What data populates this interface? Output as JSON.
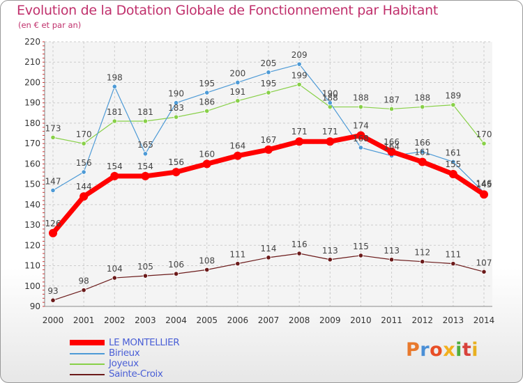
{
  "header": {
    "title": "Evolution de la Dotation Globale de Fonctionnement par Habitant",
    "subtitle": "(en € et par an)"
  },
  "brand": {
    "text": "Proxiti",
    "colors": [
      "#e8792d",
      "#4a8fd6",
      "#e84e26",
      "#f2b01e",
      "#4fad3d",
      "#d8423b",
      "#e8b020"
    ]
  },
  "chart_data": {
    "type": "line",
    "title": "Evolution de la Dotation Globale de Fonctionnement par Habitant",
    "subtitle": "(en € et par an)",
    "xlabel": "",
    "ylabel": "",
    "x": [
      "2000",
      "2001",
      "2002",
      "2003",
      "2004",
      "2005",
      "2006",
      "2007",
      "2008",
      "2009",
      "2010",
      "2011",
      "2012",
      "2013",
      "2014"
    ],
    "ylim": [
      90,
      220
    ],
    "yticks": [
      "90",
      "100",
      "110",
      "120",
      "130",
      "140",
      "150",
      "160",
      "170",
      "180",
      "190",
      "200",
      "210",
      "220"
    ],
    "grid": true,
    "legend_position": "bottom-left",
    "series": [
      {
        "name": "LE MONTELLIER",
        "color": "#ff0000",
        "values": [
          126,
          144,
          154,
          154,
          156,
          160,
          164,
          167,
          171,
          171,
          174,
          166,
          161,
          155,
          145
        ],
        "labels": [
          "126",
          "144",
          "154",
          "154",
          "156",
          "160",
          "164",
          "167",
          "171",
          "171",
          "174",
          "166",
          "161",
          "155",
          "145"
        ]
      },
      {
        "name": "Birieux",
        "color": "#4d9ad6",
        "values": [
          147,
          156,
          198,
          165,
          190,
          195,
          200,
          205,
          209,
          190,
          168,
          164,
          166,
          161,
          146
        ],
        "labels": [
          "147",
          "156",
          "198",
          "165",
          "190",
          "195",
          "200",
          "205",
          "209",
          "190",
          "168",
          "164",
          "166",
          "161",
          "146"
        ]
      },
      {
        "name": "Joyeux",
        "color": "#88d048",
        "values": [
          173,
          170,
          181,
          181,
          183,
          186,
          191,
          195,
          199,
          188,
          188,
          187,
          188,
          189,
          170
        ],
        "labels": [
          "173",
          "170",
          "181",
          "181",
          "183",
          "186",
          "191",
          "195",
          "199",
          "188",
          "188",
          "187",
          "188",
          "189",
          "170"
        ]
      },
      {
        "name": "Sainte-Croix",
        "color": "#6b1a1a",
        "values": [
          93,
          98,
          104,
          105,
          106,
          108,
          111,
          114,
          116,
          113,
          115,
          113,
          112,
          111,
          107
        ],
        "labels": [
          "93",
          "98",
          "104",
          "105",
          "106",
          "108",
          "111",
          "114",
          "116",
          "113",
          "115",
          "113",
          "112",
          "111",
          "107"
        ]
      }
    ]
  }
}
